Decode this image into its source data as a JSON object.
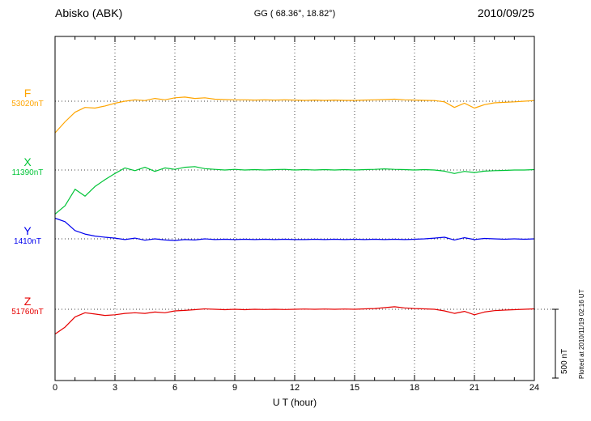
{
  "header": {
    "station": "Abisko (ABK)",
    "coords": "GG ( 68.36°,  18.82°)",
    "date": "2010/09/25"
  },
  "side": {
    "scale_label": "500 nT",
    "plotted_at": "Plotted at 2010/11/19 02:16 UT"
  },
  "chart_data": {
    "type": "line",
    "title": "Abisko (ABK) magnetogram 2010/09/25",
    "xlabel": "U T (hour)",
    "x_range": [
      0,
      24
    ],
    "x_ticks": [
      0,
      3,
      6,
      9,
      12,
      15,
      18,
      21,
      24
    ],
    "x_start": 0,
    "x_step": 0.5,
    "grid": "dotted vertical at 3h intervals, dotted horizontal baseline per channel",
    "scale_bar_nT": 500,
    "series": [
      {
        "name": "F",
        "color": "#FFA500",
        "baseline_nT": 53020,
        "baseline_label": "53020nT",
        "offset_nT": [
          -230,
          -150,
          -80,
          -45,
          -50,
          -35,
          -15,
          0,
          10,
          5,
          20,
          10,
          25,
          30,
          20,
          25,
          15,
          12,
          10,
          10,
          8,
          10,
          8,
          10,
          8,
          6,
          8,
          6,
          8,
          6,
          6,
          8,
          10,
          12,
          15,
          10,
          8,
          6,
          5,
          -5,
          -45,
          -15,
          -50,
          -25,
          -12,
          -8,
          -5,
          0,
          5
        ]
      },
      {
        "name": "X",
        "color": "#00C437",
        "baseline_nT": 11390,
        "baseline_label": "11390nT",
        "offset_nT": [
          -320,
          -260,
          -140,
          -190,
          -120,
          -70,
          -25,
          15,
          -5,
          20,
          -10,
          15,
          5,
          20,
          25,
          10,
          5,
          0,
          5,
          0,
          3,
          0,
          3,
          5,
          0,
          3,
          0,
          3,
          0,
          3,
          0,
          3,
          5,
          8,
          5,
          3,
          0,
          3,
          0,
          -8,
          -25,
          -10,
          -18,
          -8,
          -5,
          -3,
          0,
          0,
          3
        ]
      },
      {
        "name": "Y",
        "color": "#0000EE",
        "baseline_nT": 1410,
        "baseline_label": "1410nT",
        "offset_nT": [
          150,
          125,
          60,
          35,
          20,
          12,
          5,
          -5,
          5,
          -10,
          0,
          -8,
          -12,
          -5,
          -8,
          0,
          -5,
          -3,
          -5,
          -3,
          -5,
          -3,
          -5,
          -3,
          -5,
          -5,
          -3,
          -5,
          -3,
          -5,
          -3,
          -5,
          -3,
          -5,
          -3,
          -5,
          -3,
          0,
          5,
          12,
          -8,
          8,
          -5,
          3,
          0,
          -3,
          0,
          -3,
          0
        ]
      },
      {
        "name": "Z",
        "color": "#E60000",
        "baseline_nT": 51760,
        "baseline_label": "51760nT",
        "offset_nT": [
          -180,
          -130,
          -55,
          -25,
          -35,
          -45,
          -40,
          -30,
          -25,
          -30,
          -20,
          -25,
          -12,
          -8,
          -3,
          3,
          0,
          -3,
          0,
          -3,
          0,
          -2,
          0,
          -2,
          0,
          2,
          0,
          2,
          0,
          2,
          0,
          3,
          5,
          12,
          18,
          10,
          5,
          3,
          0,
          -12,
          -30,
          -15,
          -40,
          -20,
          -10,
          -6,
          -3,
          0,
          3
        ]
      }
    ]
  }
}
